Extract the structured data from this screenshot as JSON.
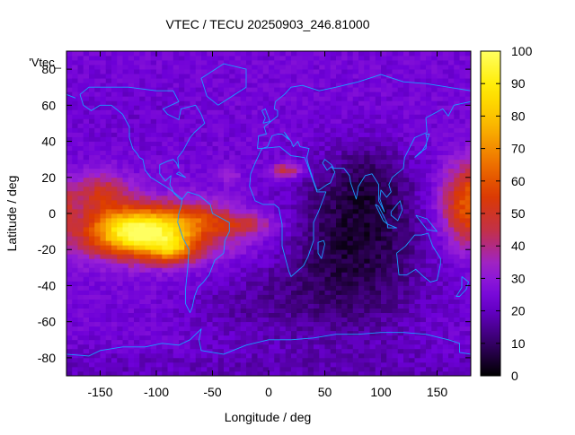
{
  "chart_data": {
    "type": "heatmap",
    "title": "VTEC / TECU 20250903_246.81000",
    "xlabel": "Longitude / deg",
    "ylabel": "Latitude / deg",
    "corner_label": "'Vtec_",
    "xlim": [
      -180,
      180
    ],
    "ylim": [
      -90,
      90
    ],
    "x_ticks": [
      -150,
      -100,
      -50,
      0,
      50,
      100,
      150
    ],
    "y_ticks": [
      -80,
      -60,
      -40,
      -20,
      0,
      20,
      40,
      60,
      80
    ],
    "colorbar": {
      "min": 0,
      "max": 100,
      "ticks": [
        0,
        10,
        20,
        30,
        40,
        50,
        60,
        70,
        80,
        90,
        100
      ]
    },
    "colormap": [
      "#000000",
      "#3a0070",
      "#6d00d8",
      "#9a22d6",
      "#c2304a",
      "#dc3a00",
      "#f07800",
      "#fbba00",
      "#ffeb00",
      "#ffff60"
    ],
    "coastline_color": "#1a9dff",
    "grid": false,
    "legend": "colorbar-right",
    "tec_field": {
      "background": 24,
      "features": [
        {
          "lon": -115,
          "lat": -10,
          "sx": 30,
          "sy": 9,
          "v": 62
        },
        {
          "lon": -85,
          "lat": -20,
          "sx": 14,
          "sy": 5,
          "v": 26
        },
        {
          "lon": -95,
          "lat": -10,
          "sx": 65,
          "sy": 12,
          "v": 20
        },
        {
          "lon": -150,
          "lat": 12,
          "sx": 18,
          "sy": 8,
          "v": 22
        },
        {
          "lon": -60,
          "lat": -3,
          "sx": 20,
          "sy": 6,
          "v": 14
        },
        {
          "lon": -20,
          "lat": -6,
          "sx": 18,
          "sy": 4,
          "v": 14
        },
        {
          "lon": 15,
          "lat": 24,
          "sx": 10,
          "sy": 3,
          "v": 24
        },
        {
          "lon": -35,
          "lat": 22,
          "sx": 6,
          "sy": 3,
          "v": 12
        },
        {
          "lon": 180,
          "lat": 5,
          "sx": 18,
          "sy": 16,
          "v": 40
        },
        {
          "lon": -180,
          "lat": 5,
          "sx": 6,
          "sy": 10,
          "v": 14
        },
        {
          "lon": 75,
          "lat": -10,
          "sx": 45,
          "sy": 25,
          "v": -18
        },
        {
          "lon": 90,
          "lat": 20,
          "sx": 25,
          "sy": 15,
          "v": -8
        },
        {
          "lon": 60,
          "lat": -50,
          "sx": 60,
          "sy": 20,
          "v": -8
        },
        {
          "lon": -30,
          "lat": -50,
          "sx": 35,
          "sy": 15,
          "v": -4
        },
        {
          "lon": 0,
          "lat": -88,
          "sx": 400,
          "sy": 10,
          "v": -5
        },
        {
          "lon": -120,
          "lat": 55,
          "sx": 50,
          "sy": 15,
          "v": -2
        }
      ]
    }
  }
}
